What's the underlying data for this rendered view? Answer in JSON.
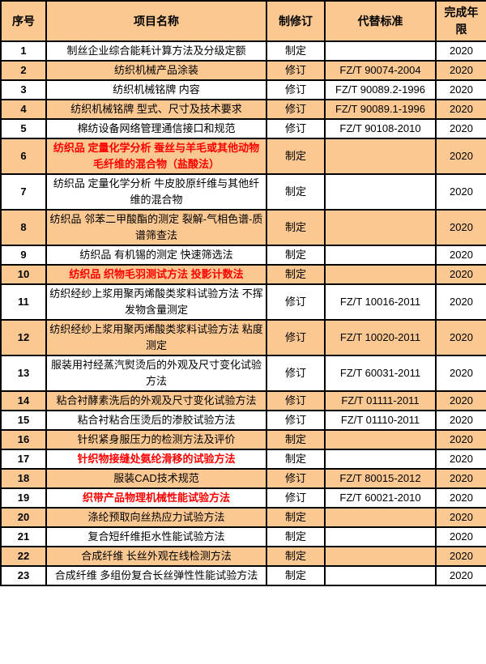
{
  "colors": {
    "alt_row_bg": "#FBC892",
    "header_bg": "#FBC892",
    "highlight_text": "#FF0000",
    "border": "#000000"
  },
  "table": {
    "columns": [
      {
        "label": "序号"
      },
      {
        "label": "项目名称"
      },
      {
        "label": "制修订"
      },
      {
        "label": "代替标准"
      },
      {
        "label": "完成年限"
      }
    ],
    "rows": [
      {
        "num": "1",
        "name": "制丝企业综合能耗计算方法及分级定额",
        "revision": "制定",
        "standard": "",
        "year": "2020",
        "red": false
      },
      {
        "num": "2",
        "name": "纺织机械产品涂装",
        "revision": "修订",
        "standard": "FZ/T 90074-2004",
        "year": "2020",
        "red": false
      },
      {
        "num": "3",
        "name": "纺织机械铭牌 内容",
        "revision": "修订",
        "standard": "FZ/T 90089.2-1996",
        "year": "2020",
        "red": false
      },
      {
        "num": "4",
        "name": "纺织机械铭牌 型式、尺寸及技术要求",
        "revision": "修订",
        "standard": "FZ/T 90089.1-1996",
        "year": "2020",
        "red": false
      },
      {
        "num": "5",
        "name": "棉纺设备网络管理通信接口和规范",
        "revision": "修订",
        "standard": "FZ/T 90108-2010",
        "year": "2020",
        "red": false
      },
      {
        "num": "6",
        "name": "纺织品 定量化学分析 蚕丝与羊毛或其他动物毛纤维的混合物（盐酸法）",
        "revision": "制定",
        "standard": "",
        "year": "2020",
        "red": true
      },
      {
        "num": "7",
        "name": "纺织品 定量化学分析 牛皮胶原纤维与其他纤维的混合物",
        "revision": "制定",
        "standard": "",
        "year": "2020",
        "red": false
      },
      {
        "num": "8",
        "name": "纺织品 邻苯二甲酸酯的测定 裂解-气相色谱-质谱筛查法",
        "revision": "制定",
        "standard": "",
        "year": "2020",
        "red": false
      },
      {
        "num": "9",
        "name": "纺织品 有机锡的测定 快速筛选法",
        "revision": "制定",
        "standard": "",
        "year": "2020",
        "red": false
      },
      {
        "num": "10",
        "name": "纺织品 织物毛羽测试方法 投影计数法",
        "revision": "制定",
        "standard": "",
        "year": "2020",
        "red": true
      },
      {
        "num": "11",
        "name": "纺织经纱上浆用聚丙烯酸类浆料试验方法 不挥发物含量测定",
        "revision": "修订",
        "standard": "FZ/T 10016-2011",
        "year": "2020",
        "red": false
      },
      {
        "num": "12",
        "name": "纺织经纱上浆用聚丙烯酸类浆料试验方法 粘度测定",
        "revision": "修订",
        "standard": "FZ/T 10020-2011",
        "year": "2020",
        "red": false
      },
      {
        "num": "13",
        "name": "服装用衬经蒸汽熨烫后的外观及尺寸变化试验方法",
        "revision": "修订",
        "standard": "FZ/T 60031-2011",
        "year": "2020",
        "red": false
      },
      {
        "num": "14",
        "name": "粘合衬酵素洗后的外观及尺寸变化试验方法",
        "revision": "修订",
        "standard": "FZ/T 01111-2011",
        "year": "2020",
        "red": false
      },
      {
        "num": "15",
        "name": "粘合衬粘合压烫后的渗胶试验方法",
        "revision": "修订",
        "standard": "FZ/T 01110-2011",
        "year": "2020",
        "red": false
      },
      {
        "num": "16",
        "name": "针织紧身服压力的检测方法及评价",
        "revision": "制定",
        "standard": "",
        "year": "2020",
        "red": false
      },
      {
        "num": "17",
        "name": "针织物接缝处氨纶滑移的试验方法",
        "revision": "制定",
        "standard": "",
        "year": "2020",
        "red": true
      },
      {
        "num": "18",
        "name": "服装CAD技术规范",
        "revision": "修订",
        "standard": "FZ/T 80015-2012",
        "year": "2020",
        "red": false
      },
      {
        "num": "19",
        "name": "织带产品物理机械性能试验方法",
        "revision": "修订",
        "standard": "FZ/T 60021-2010",
        "year": "2020",
        "red": true
      },
      {
        "num": "20",
        "name": "涤纶预取向丝热应力试验方法",
        "revision": "制定",
        "standard": "",
        "year": "2020",
        "red": false
      },
      {
        "num": "21",
        "name": "复合短纤维拒水性能试验方法",
        "revision": "制定",
        "standard": "",
        "year": "2020",
        "red": false
      },
      {
        "num": "22",
        "name": "合成纤维 长丝外观在线检测方法",
        "revision": "制定",
        "standard": "",
        "year": "2020",
        "red": false
      },
      {
        "num": "23",
        "name": "合成纤维 多组份复合长丝弹性性能试验方法",
        "revision": "制定",
        "standard": "",
        "year": "2020",
        "red": false
      }
    ]
  }
}
